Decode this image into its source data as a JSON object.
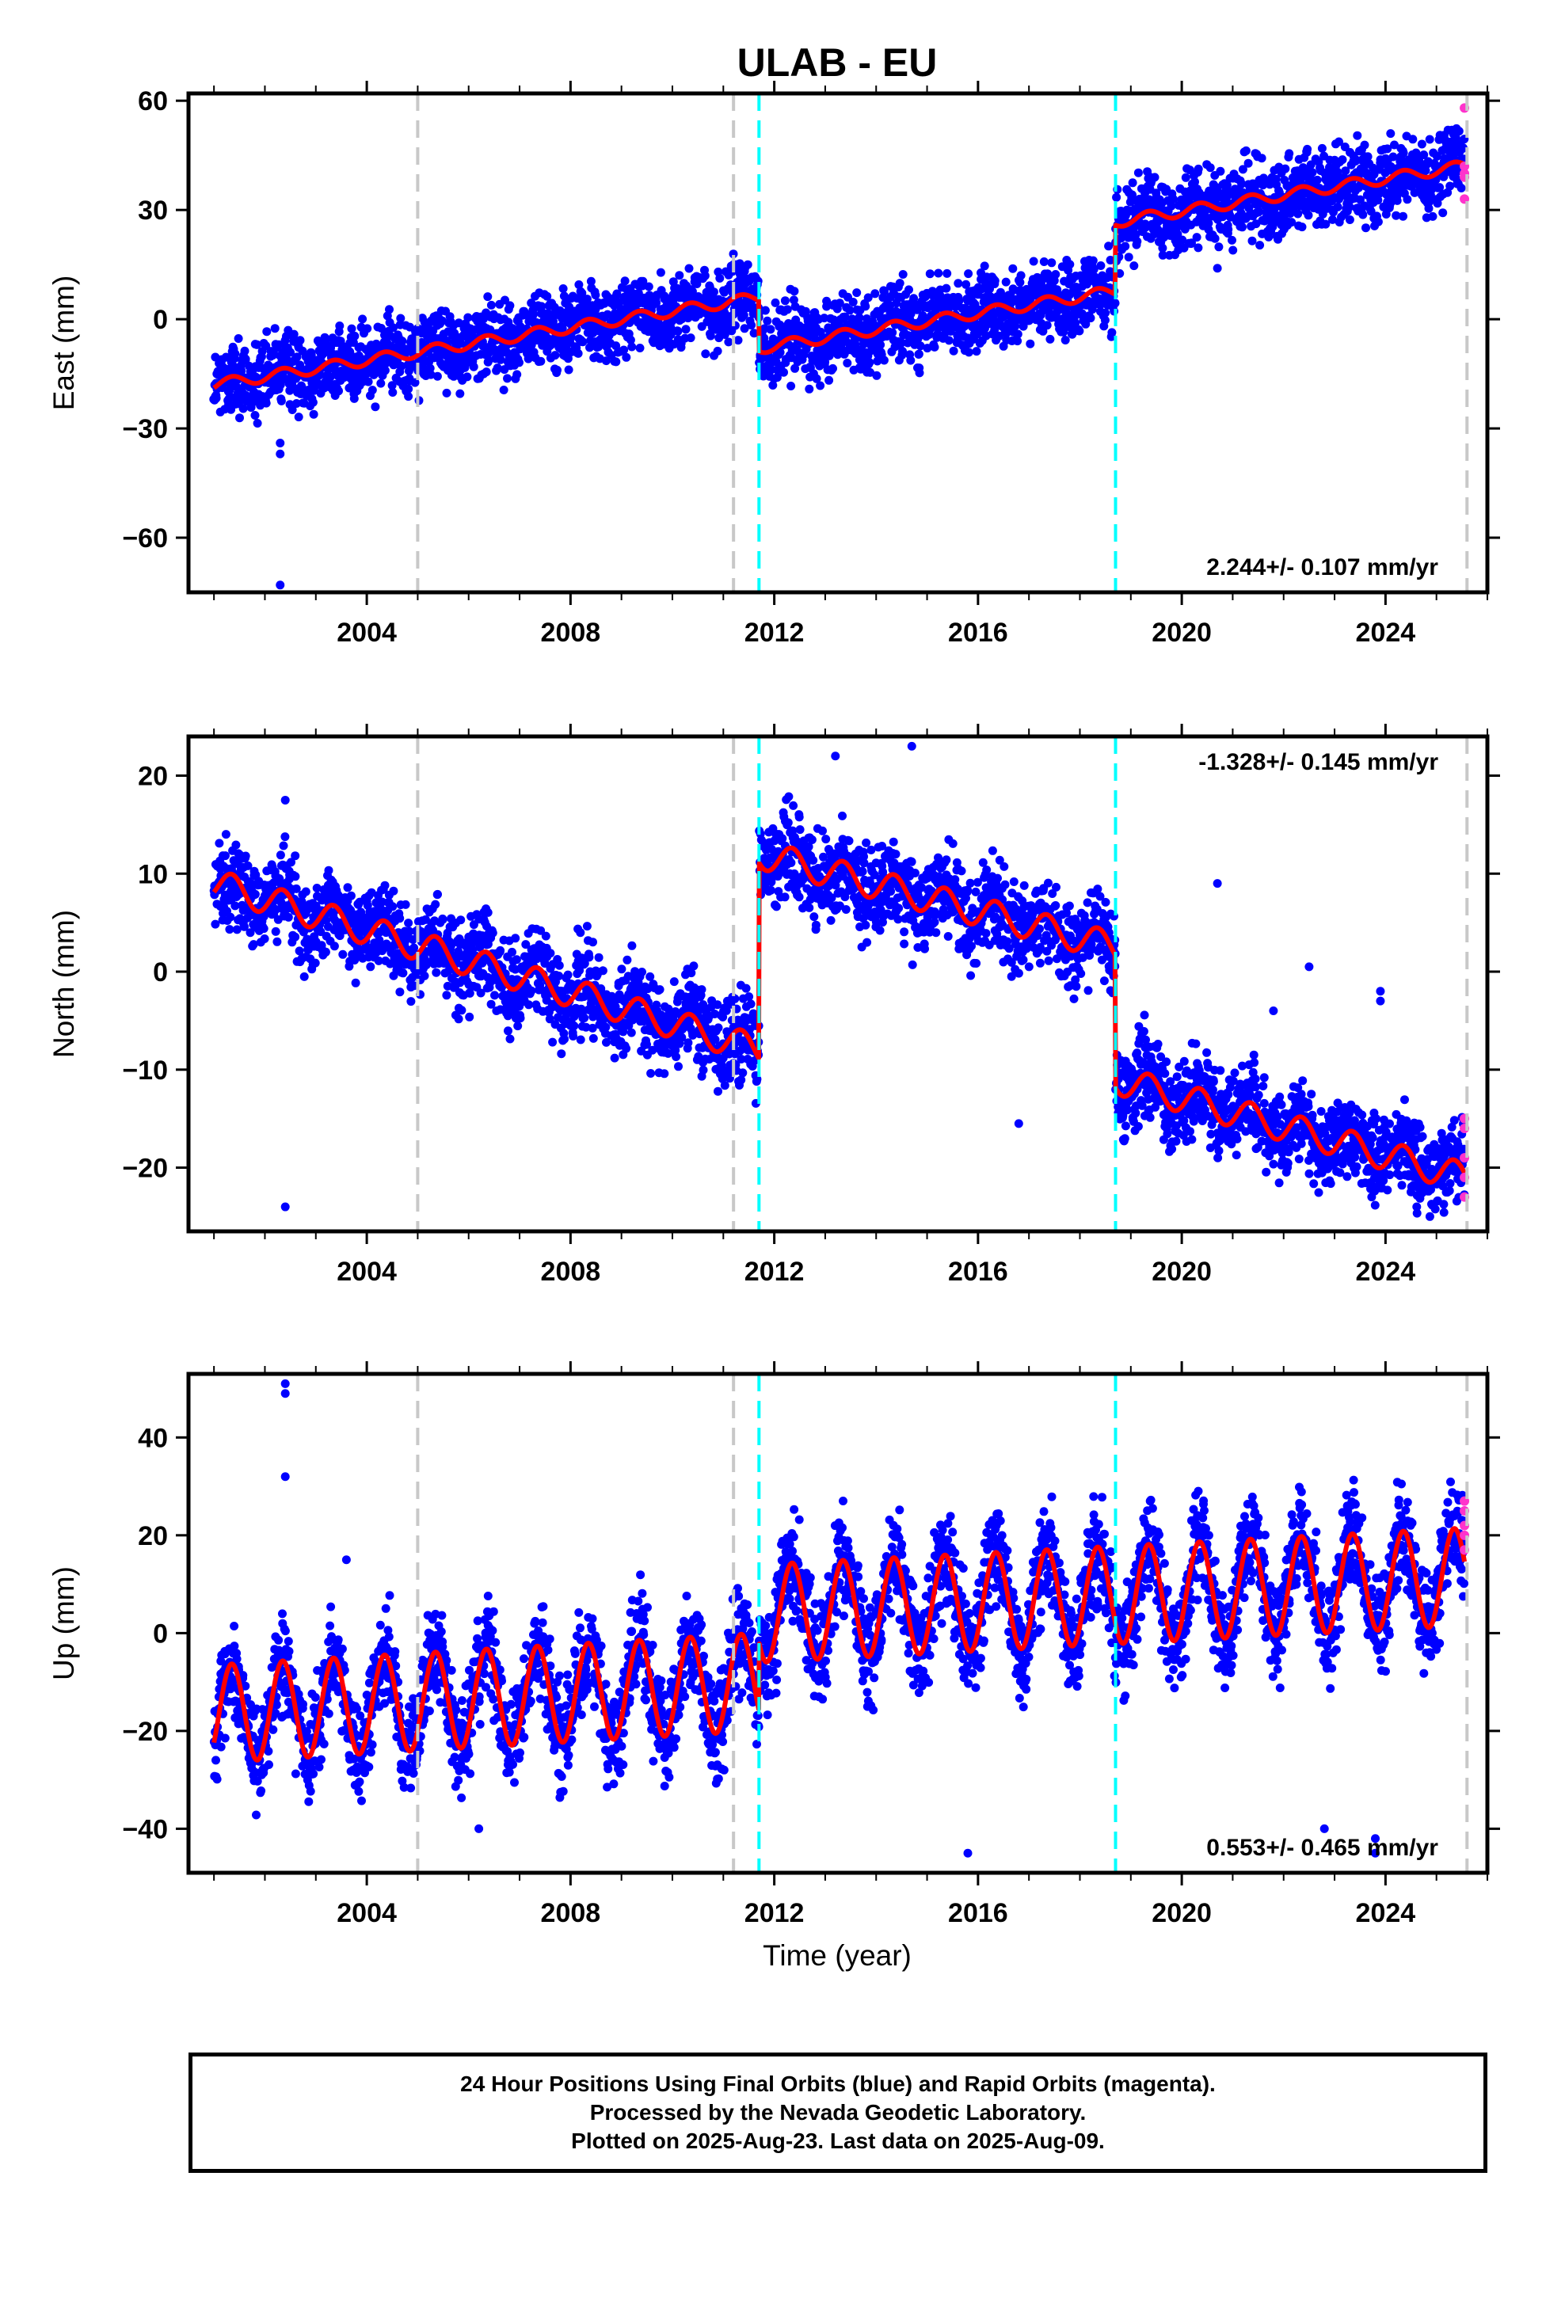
{
  "title": "ULAB - EU",
  "xlabel": "Time (year)",
  "footer": {
    "line1": "24 Hour Positions Using Final Orbits (blue) and Rapid Orbits (magenta).",
    "line2": "Processed by the Nevada Geodetic Laboratory.",
    "line3": "Plotted on 2025-Aug-23. Last data on 2025-Aug-09."
  },
  "colors": {
    "final_points": "#0000ff",
    "rapid_points": "#ff33cc",
    "model": "#ff0000",
    "equipment_change": "#c8c8c8",
    "earthquake": "#00ffff"
  },
  "chart_data": [
    {
      "type": "scatter",
      "component": "East",
      "ylabel": "East (mm)",
      "rate_label": "2.244+/- 0.107 mm/yr",
      "xlim": [
        2000.5,
        2026.0
      ],
      "ylim": [
        -75,
        62
      ],
      "yticks": [
        -60,
        -30,
        0,
        30,
        60
      ],
      "xticks": [
        2004,
        2008,
        2012,
        2016,
        2020,
        2024
      ],
      "grey_lines": [
        2005.0,
        2011.2,
        2025.6
      ],
      "cyan_lines": [
        2011.7,
        2018.7
      ],
      "model": {
        "rate": 2.244,
        "steps": [
          [
            2011.7,
            -14
          ],
          [
            2018.7,
            19
          ]
        ],
        "annual_amp": 1.5,
        "x0": 2001.0,
        "y0": -18,
        "x1": 2025.55
      },
      "scatter": 5.0,
      "outliers": [
        [
          2002.3,
          -37
        ],
        [
          2002.3,
          -34
        ],
        [
          2002.3,
          -73
        ],
        [
          2010.9,
          13
        ],
        [
          2011.2,
          15
        ],
        [
          2020.7,
          14
        ],
        [
          2024.1,
          51
        ]
      ],
      "rapid_points": [
        [
          2025.55,
          58
        ],
        [
          2025.55,
          42
        ],
        [
          2025.55,
          40
        ],
        [
          2025.55,
          39
        ],
        [
          2025.55,
          33
        ]
      ]
    },
    {
      "type": "scatter",
      "component": "North",
      "ylabel": "North (mm)",
      "rate_label": "-1.328+/- 0.145 mm/yr",
      "xlim": [
        2000.5,
        2026.0
      ],
      "ylim": [
        -26.5,
        24
      ],
      "yticks": [
        -20,
        -10,
        0,
        10,
        20
      ],
      "xticks": [
        2004,
        2008,
        2012,
        2016,
        2020,
        2024
      ],
      "grey_lines": [
        2005.0,
        2011.2,
        2025.6
      ],
      "cyan_lines": [
        2011.7,
        2018.7
      ],
      "model": {
        "segments": [
          [
            2001.0,
            9.0,
            2011.7,
            -8.0
          ],
          [
            2011.7,
            12.0,
            2018.7,
            2.5
          ],
          [
            2018.7,
            -11.0,
            2025.55,
            -21.0
          ]
        ],
        "annual_amp": 1.5
      },
      "scatter": 2.2,
      "outliers": [
        [
          2002.4,
          -24
        ],
        [
          2002.4,
          17.5
        ],
        [
          2013.2,
          22
        ],
        [
          2014.7,
          23
        ],
        [
          2016.8,
          -15.5
        ],
        [
          2020.7,
          9
        ],
        [
          2022.5,
          0.5
        ],
        [
          2021.8,
          -4
        ],
        [
          2023.9,
          -2
        ],
        [
          2023.9,
          -3
        ]
      ],
      "rapid_points": [
        [
          2025.55,
          -15
        ],
        [
          2025.55,
          -16
        ],
        [
          2025.55,
          -19
        ],
        [
          2025.55,
          -21
        ],
        [
          2025.55,
          -23
        ]
      ]
    },
    {
      "type": "scatter",
      "component": "Up",
      "ylabel": "Up (mm)",
      "rate_label": "0.553+/- 0.465 mm/yr",
      "xlim": [
        2000.5,
        2026.0
      ],
      "ylim": [
        -49,
        53
      ],
      "yticks": [
        -40,
        -20,
        0,
        20,
        40
      ],
      "xticks": [
        2004,
        2008,
        2012,
        2016,
        2020,
        2024
      ],
      "grey_lines": [
        2005.0,
        2011.2,
        2025.6
      ],
      "cyan_lines": [
        2011.7,
        2018.7
      ],
      "model": {
        "segments": [
          [
            2001.0,
            -16.5,
            2011.7,
            -10.0
          ],
          [
            2011.7,
            4.0,
            2025.55,
            11.5
          ]
        ],
        "annual_amp": 10.0
      },
      "scatter": 5.0,
      "outliers": [
        [
          2002.4,
          51
        ],
        [
          2002.4,
          49
        ],
        [
          2002.4,
          32
        ],
        [
          2003.6,
          15
        ],
        [
          2006.2,
          -40
        ],
        [
          2012.8,
          6
        ],
        [
          2015.8,
          -45
        ],
        [
          2022.8,
          -40
        ],
        [
          2023.8,
          -42
        ],
        [
          2023.8,
          -45
        ]
      ],
      "rapid_points": [
        [
          2025.55,
          27
        ],
        [
          2025.55,
          25
        ],
        [
          2025.55,
          22
        ],
        [
          2025.55,
          20
        ],
        [
          2025.55,
          17
        ]
      ]
    }
  ]
}
